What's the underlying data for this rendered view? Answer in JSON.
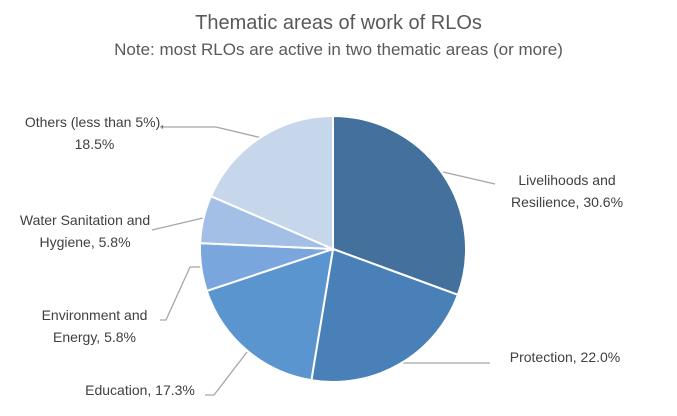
{
  "chart_data": {
    "type": "pie",
    "title": "Thematic areas of work of RLOs",
    "subtitle": "Note: most RLOs are active in two thematic areas (or more)",
    "values": [
      30.6,
      22.0,
      17.3,
      5.8,
      5.8,
      18.5
    ],
    "value_labels": [
      "Livelihoods and Resilience, 30.6%",
      "Protection, 22.0%",
      "Education, 17.3%",
      "Environment and Energy, 5.8%",
      "Water Sanitation and Hygiene, 5.8%",
      "Others (less than 5%), 18.5%"
    ],
    "colors": [
      "#44709d",
      "#4a80b8",
      "#5b95d0",
      "#79a6dc",
      "#a3bfe6",
      "#c6d6eb"
    ]
  }
}
